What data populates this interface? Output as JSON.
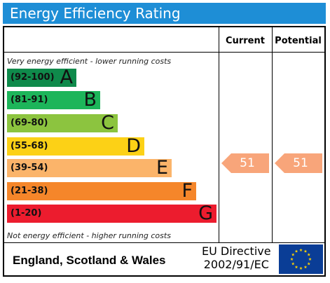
{
  "title": "Energy Efficiency Rating",
  "columns": {
    "current": "Current",
    "potential": "Potential"
  },
  "top_caption": "Very energy efficient - lower running costs",
  "bottom_caption": "Not energy efficient - higher running costs",
  "bands": [
    {
      "range": "(92-100)",
      "letter": "A",
      "color": "#0f8a4b"
    },
    {
      "range": "(81-91)",
      "letter": "B",
      "color": "#1db55a"
    },
    {
      "range": "(69-80)",
      "letter": "C",
      "color": "#8cc43f"
    },
    {
      "range": "(55-68)",
      "letter": "D",
      "color": "#fcd116"
    },
    {
      "range": "(39-54)",
      "letter": "E",
      "color": "#fbb46a"
    },
    {
      "range": "(21-38)",
      "letter": "F",
      "color": "#f5862a"
    },
    {
      "range": "(1-20)",
      "letter": "G",
      "color": "#ec1c2e"
    }
  ],
  "current_rating": {
    "value": "51",
    "color": "#f8a57a"
  },
  "potential_rating": {
    "value": "51",
    "color": "#f8a57a"
  },
  "footer": {
    "region": "England, Scotland & Wales",
    "directive_line1": "EU Directive",
    "directive_line2": "2002/91/EC",
    "flag_icon": "eu-flag-icon"
  }
}
